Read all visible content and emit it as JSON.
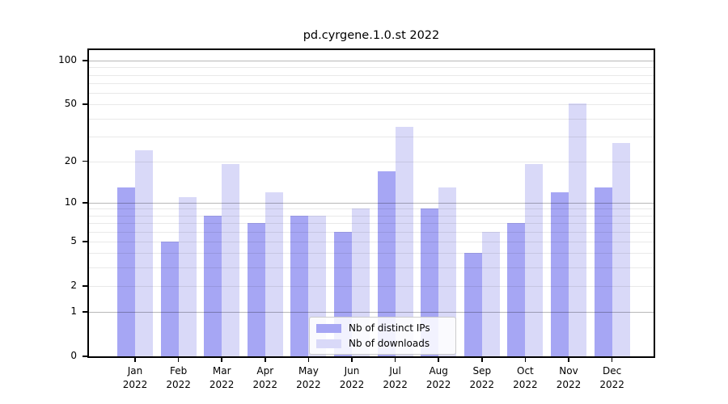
{
  "title": "pd.cyrgene.1.0.st 2022",
  "colors": {
    "distinct_ips_bar": "#a6a6f4",
    "downloads_bar": "#d9d9f8",
    "axis_line": "#000000",
    "grid_minor": "#ebebeb",
    "grid_major": "#b8b8b8",
    "legend_border": "#cccccc",
    "background": "#ffffff"
  },
  "legend": {
    "items": [
      {
        "label": "Nb of distinct IPs",
        "series_index": 0
      },
      {
        "label": "Nb of downloads",
        "series_index": 1
      }
    ],
    "position": "lower center"
  },
  "chart_data": {
    "type": "bar",
    "title": "pd.cyrgene.1.0.st 2022",
    "categories": [
      "Jan 2022",
      "Feb 2022",
      "Mar 2022",
      "Apr 2022",
      "May 2022",
      "Jun 2022",
      "Jul 2022",
      "Aug 2022",
      "Sep 2022",
      "Oct 2022",
      "Nov 2022",
      "Dec 2022"
    ],
    "series": [
      {
        "name": "Nb of distinct IPs",
        "color": "#a6a6f4",
        "values": [
          13,
          5,
          8,
          7,
          8,
          6,
          17,
          9,
          4,
          7,
          12,
          13
        ]
      },
      {
        "name": "Nb of downloads",
        "color": "#d9d9f8",
        "values": [
          24,
          11,
          19,
          12,
          8,
          9,
          35,
          13,
          6,
          19,
          51,
          27
        ]
      }
    ],
    "xlabel": "",
    "ylabel": "",
    "y_axis": {
      "scale": "log1p",
      "labeled_ticks": [
        0,
        1,
        2,
        5,
        10,
        20,
        50,
        100
      ],
      "major_gridlines": [
        1,
        10,
        100
      ],
      "minor_gridlines": [
        2,
        3,
        4,
        5,
        6,
        7,
        8,
        9,
        20,
        30,
        40,
        50,
        60,
        70,
        80,
        90
      ],
      "max": 118
    },
    "grid": true,
    "legend_position": "lower center"
  }
}
